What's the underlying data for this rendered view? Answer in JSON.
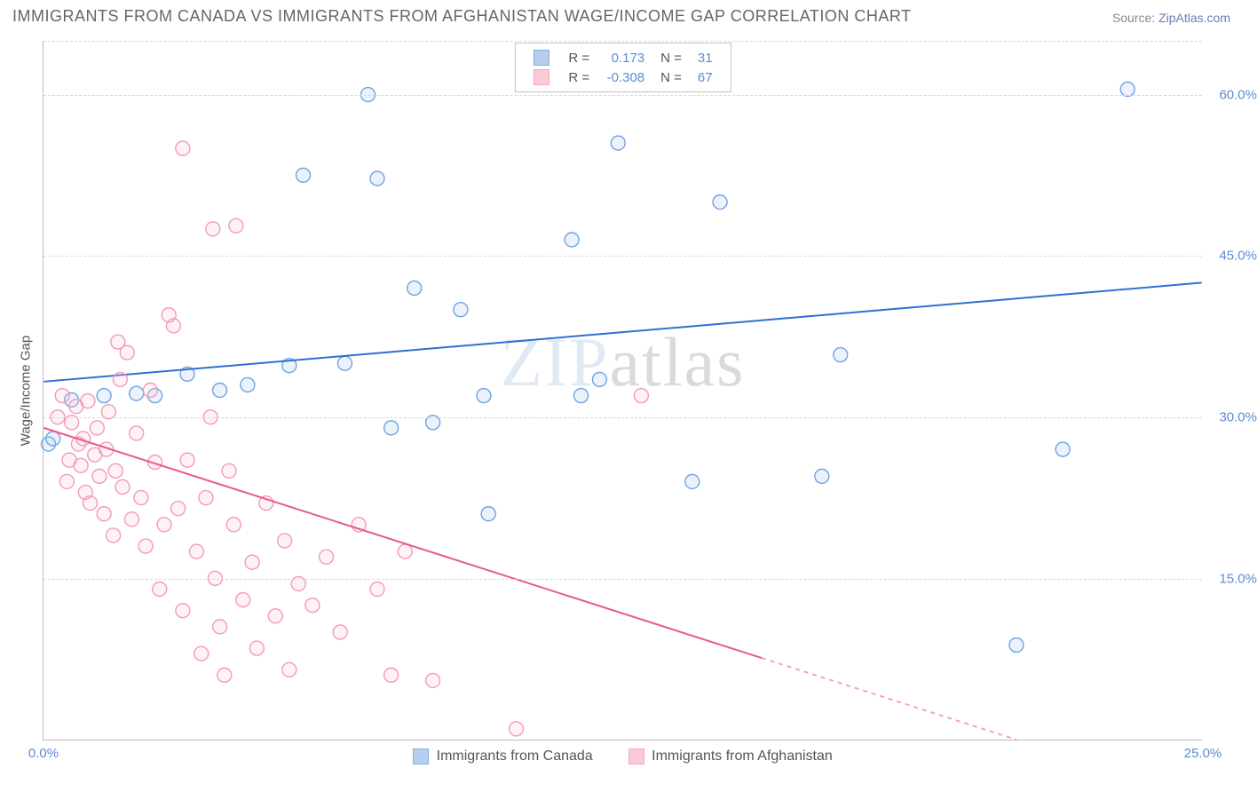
{
  "title": "IMMIGRANTS FROM CANADA VS IMMIGRANTS FROM AFGHANISTAN WAGE/INCOME GAP CORRELATION CHART",
  "source_label": "Source:",
  "source_name": "ZipAtlas.com",
  "watermark_main": "ZIP",
  "watermark_tail": "atlas",
  "ylabel": "Wage/Income Gap",
  "chart": {
    "type": "scatter",
    "xlim": [
      0,
      25
    ],
    "ylim": [
      0,
      65
    ],
    "xtick_positions": [
      0,
      25
    ],
    "xtick_labels": [
      "0.0%",
      "25.0%"
    ],
    "ytick_positions": [
      15,
      30,
      45,
      60
    ],
    "ytick_labels": [
      "15.0%",
      "30.0%",
      "45.0%",
      "60.0%"
    ],
    "background_color": "#ffffff",
    "grid_color": "#d8d8d8",
    "axis_color": "#bbbbbb",
    "tick_label_color": "#5b8bd4",
    "marker_radius": 8,
    "marker_stroke_width": 1.4,
    "marker_fill_opacity": 0.22,
    "line_width": 2,
    "series": [
      {
        "key": "canada",
        "label": "Immigrants from Canada",
        "color_stroke": "#6ea3e0",
        "color_fill": "#a9c6ec",
        "line_color": "#2f6fd0",
        "R": "0.173",
        "N": "31",
        "trend": {
          "x1": 0,
          "y1": 33.3,
          "x2": 25,
          "y2": 42.5,
          "dashed_from_x": null
        },
        "points": [
          [
            0.1,
            27.5
          ],
          [
            0.6,
            31.6
          ],
          [
            1.3,
            32.0
          ],
          [
            2.0,
            32.2
          ],
          [
            2.4,
            32.0
          ],
          [
            3.1,
            34.0
          ],
          [
            3.8,
            32.5
          ],
          [
            4.4,
            33.0
          ],
          [
            5.3,
            34.8
          ],
          [
            5.6,
            52.5
          ],
          [
            6.5,
            35.0
          ],
          [
            7.2,
            52.2
          ],
          [
            7.5,
            29.0
          ],
          [
            8.0,
            42.0
          ],
          [
            8.4,
            29.5
          ],
          [
            9.0,
            40.0
          ],
          [
            9.5,
            32.0
          ],
          [
            9.6,
            21.0
          ],
          [
            11.4,
            46.5
          ],
          [
            11.6,
            32.0
          ],
          [
            12.0,
            33.5
          ],
          [
            12.4,
            55.5
          ],
          [
            14.0,
            24.0
          ],
          [
            14.6,
            50.0
          ],
          [
            16.8,
            24.5
          ],
          [
            17.2,
            35.8
          ],
          [
            21.0,
            8.8
          ],
          [
            22.0,
            27.0
          ],
          [
            23.4,
            60.5
          ],
          [
            7.0,
            60.0
          ],
          [
            0.2,
            28.0
          ]
        ]
      },
      {
        "key": "afghanistan",
        "label": "Immigrants from Afghanistan",
        "color_stroke": "#f49ab4",
        "color_fill": "#f9c3d3",
        "line_color": "#e85a8a",
        "R": "-0.308",
        "N": "67",
        "trend": {
          "x1": 0,
          "y1": 29.0,
          "x2": 21,
          "y2": 0,
          "dashed_from_x": 15.5
        },
        "points": [
          [
            0.3,
            30.0
          ],
          [
            0.4,
            32.0
          ],
          [
            0.5,
            24.0
          ],
          [
            0.55,
            26.0
          ],
          [
            0.6,
            29.5
          ],
          [
            0.7,
            31.0
          ],
          [
            0.75,
            27.5
          ],
          [
            0.8,
            25.5
          ],
          [
            0.85,
            28.0
          ],
          [
            0.9,
            23.0
          ],
          [
            0.95,
            31.5
          ],
          [
            1.0,
            22.0
          ],
          [
            1.1,
            26.5
          ],
          [
            1.15,
            29.0
          ],
          [
            1.2,
            24.5
          ],
          [
            1.3,
            21.0
          ],
          [
            1.35,
            27.0
          ],
          [
            1.4,
            30.5
          ],
          [
            1.5,
            19.0
          ],
          [
            1.55,
            25.0
          ],
          [
            1.6,
            37.0
          ],
          [
            1.7,
            23.5
          ],
          [
            1.8,
            36.0
          ],
          [
            1.9,
            20.5
          ],
          [
            2.0,
            28.5
          ],
          [
            2.1,
            22.5
          ],
          [
            2.2,
            18.0
          ],
          [
            2.3,
            32.5
          ],
          [
            2.4,
            25.8
          ],
          [
            2.5,
            14.0
          ],
          [
            2.6,
            20.0
          ],
          [
            2.8,
            38.5
          ],
          [
            2.9,
            21.5
          ],
          [
            3.0,
            12.0
          ],
          [
            3.0,
            55.0
          ],
          [
            3.1,
            26.0
          ],
          [
            3.3,
            17.5
          ],
          [
            3.4,
            8.0
          ],
          [
            3.5,
            22.5
          ],
          [
            3.6,
            30.0
          ],
          [
            3.65,
            47.5
          ],
          [
            3.7,
            15.0
          ],
          [
            3.8,
            10.5
          ],
          [
            3.9,
            6.0
          ],
          [
            4.0,
            25.0
          ],
          [
            4.1,
            20.0
          ],
          [
            4.15,
            47.8
          ],
          [
            4.3,
            13.0
          ],
          [
            4.5,
            16.5
          ],
          [
            4.6,
            8.5
          ],
          [
            4.8,
            22.0
          ],
          [
            5.0,
            11.5
          ],
          [
            5.2,
            18.5
          ],
          [
            5.3,
            6.5
          ],
          [
            5.5,
            14.5
          ],
          [
            5.8,
            12.5
          ],
          [
            6.1,
            17.0
          ],
          [
            6.4,
            10.0
          ],
          [
            6.8,
            20.0
          ],
          [
            7.2,
            14.0
          ],
          [
            7.5,
            6.0
          ],
          [
            7.8,
            17.5
          ],
          [
            8.4,
            5.5
          ],
          [
            10.2,
            1.0
          ],
          [
            12.9,
            32.0
          ],
          [
            2.7,
            39.5
          ],
          [
            1.65,
            33.5
          ]
        ]
      }
    ]
  },
  "legend_top": {
    "R_label": "R =",
    "N_label": "N ="
  }
}
